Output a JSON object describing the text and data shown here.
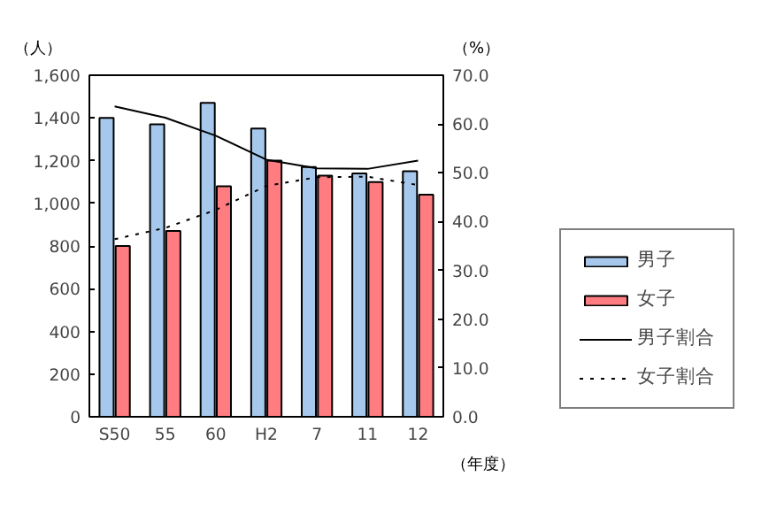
{
  "chart_data": {
    "type": "bar",
    "ylabel": "（人）",
    "y2label": "（%）",
    "xlabel": "（年度）",
    "categories": [
      "S50",
      "55",
      "60",
      "H2",
      "7",
      "11",
      "12"
    ],
    "series": [
      {
        "name": "男子",
        "color": "#a6c8ec",
        "values": [
          1400,
          1370,
          1470,
          1350,
          1170,
          1140,
          1150
        ]
      },
      {
        "name": "女子",
        "color": "#ff7c80",
        "values": [
          800,
          870,
          1080,
          1200,
          1130,
          1100,
          1040
        ]
      },
      {
        "name": "男子割合",
        "type": "line",
        "axis": "y2",
        "color": "#000000",
        "line_style": "solid",
        "values": [
          63.6,
          61.3,
          57.6,
          52.7,
          50.9,
          50.8,
          52.5
        ]
      },
      {
        "name": "女子割合",
        "type": "line",
        "axis": "y2",
        "color": "#000000",
        "line_style": "dotted",
        "values": [
          36.4,
          38.7,
          42.4,
          47.3,
          49.1,
          49.2,
          47.5
        ]
      }
    ],
    "ylim": [
      0,
      1600
    ],
    "yticks": [
      0,
      200,
      400,
      600,
      800,
      {
        "value": 1000,
        "label": "1,000"
      },
      {
        "value": 1200,
        "label": "1,200"
      },
      {
        "value": 1400,
        "label": "1,400"
      },
      {
        "value": 1600,
        "label": "1,600"
      }
    ],
    "y2lim": [
      0,
      70
    ],
    "y2ticks": [
      {
        "value": 0,
        "label": "0.0"
      },
      {
        "value": 10,
        "label": "10.0"
      },
      {
        "value": 20,
        "label": "20.0"
      },
      {
        "value": 30,
        "label": "30.0"
      },
      {
        "value": 40,
        "label": "40.0"
      },
      {
        "value": 50,
        "label": "50.0"
      },
      {
        "value": 60,
        "label": "60.0"
      },
      {
        "value": 70,
        "label": "70.0"
      }
    ],
    "grid": false,
    "legend": "bottom right",
    "marker": "none"
  }
}
